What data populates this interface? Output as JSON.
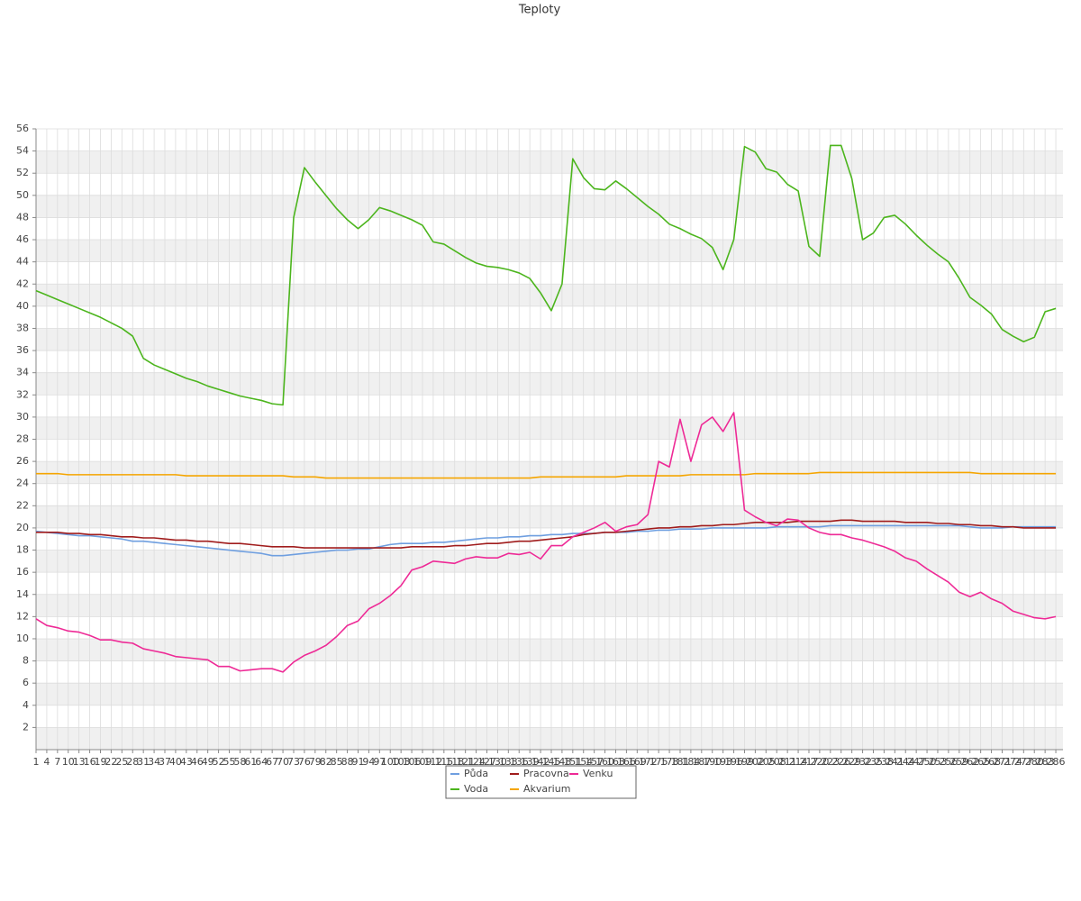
{
  "chart_data": {
    "type": "line",
    "title": "Teploty",
    "x": [
      1,
      4,
      7,
      10,
      13,
      16,
      19,
      22,
      25,
      28,
      31,
      34,
      37,
      40,
      43,
      46,
      49,
      52,
      55,
      58,
      61,
      64,
      67,
      70,
      73,
      76,
      79,
      82,
      85,
      88,
      91,
      94,
      97,
      100,
      103,
      106,
      109,
      112,
      115,
      118,
      121,
      124,
      127,
      130,
      133,
      136,
      139,
      142,
      145,
      148,
      151,
      154,
      157,
      160,
      163,
      166,
      169,
      172,
      175,
      178,
      181,
      184,
      187,
      190,
      193,
      196,
      199,
      202,
      205,
      208,
      211,
      214,
      217,
      220,
      223,
      226,
      229,
      232,
      235,
      238,
      241,
      244,
      247,
      250,
      253,
      256,
      259,
      262,
      265,
      268,
      271,
      274,
      277,
      280,
      283,
      286
    ],
    "xlim": [
      1,
      288
    ],
    "ylim": [
      0,
      56
    ],
    "yticks": [
      2,
      4,
      6,
      8,
      10,
      12,
      14,
      16,
      18,
      20,
      22,
      24,
      26,
      28,
      30,
      32,
      34,
      36,
      38,
      40,
      42,
      44,
      46,
      48,
      50,
      52,
      54,
      56
    ],
    "grid": true,
    "legend": "bottom",
    "series": [
      {
        "name": "Půda",
        "color": "#6f9fe0",
        "values": [
          19.7,
          19.6,
          19.5,
          19.4,
          19.3,
          19.3,
          19.2,
          19.1,
          19.0,
          18.8,
          18.8,
          18.7,
          18.6,
          18.5,
          18.4,
          18.3,
          18.2,
          18.1,
          18.0,
          17.9,
          17.8,
          17.7,
          17.5,
          17.5,
          17.6,
          17.7,
          17.8,
          17.9,
          18.0,
          18.0,
          18.1,
          18.1,
          18.3,
          18.5,
          18.6,
          18.6,
          18.6,
          18.7,
          18.7,
          18.8,
          18.9,
          19.0,
          19.1,
          19.1,
          19.2,
          19.2,
          19.3,
          19.3,
          19.4,
          19.4,
          19.5,
          19.5,
          19.5,
          19.6,
          19.6,
          19.6,
          19.7,
          19.7,
          19.8,
          19.8,
          19.9,
          19.9,
          19.9,
          20.0,
          20.0,
          20.0,
          20.0,
          20.0,
          20.0,
          20.1,
          20.1,
          20.1,
          20.1,
          20.1,
          20.2,
          20.2,
          20.2,
          20.2,
          20.2,
          20.2,
          20.2,
          20.2,
          20.2,
          20.2,
          20.2,
          20.2,
          20.2,
          20.1,
          20.0,
          20.0,
          20.0,
          20.1,
          20.1,
          20.1,
          20.1,
          20.1
        ]
      },
      {
        "name": "Voda",
        "color": "#4cb51d",
        "values": [
          41.4,
          41.0,
          40.6,
          40.2,
          39.8,
          39.4,
          39.0,
          38.5,
          38.0,
          37.3,
          35.3,
          34.7,
          34.3,
          33.9,
          33.5,
          33.2,
          32.8,
          32.5,
          32.2,
          31.9,
          31.7,
          31.5,
          31.2,
          31.1,
          48.0,
          52.5,
          51.2,
          50.0,
          48.8,
          47.8,
          47.0,
          47.8,
          48.9,
          48.6,
          48.2,
          47.8,
          47.3,
          45.8,
          45.6,
          45.0,
          44.4,
          43.9,
          43.6,
          43.5,
          43.3,
          43.0,
          42.5,
          41.2,
          39.6,
          42.0,
          53.3,
          51.6,
          50.6,
          50.5,
          51.3,
          50.6,
          49.8,
          49.0,
          48.3,
          47.4,
          47.0,
          46.5,
          46.1,
          45.3,
          43.3,
          46.0,
          54.4,
          53.9,
          52.4,
          52.1,
          51.0,
          50.4,
          45.4,
          44.5,
          54.5,
          54.5,
          51.5,
          46.0,
          46.6,
          48.0,
          48.2,
          47.4,
          46.4,
          45.5,
          44.7,
          44.0,
          42.5,
          40.8,
          40.1,
          39.3,
          37.9,
          37.3,
          36.8,
          37.2,
          39.5,
          39.8
        ]
      },
      {
        "name": "Pracovna",
        "color": "#a01c1c",
        "values": [
          19.6,
          19.6,
          19.6,
          19.5,
          19.5,
          19.4,
          19.4,
          19.3,
          19.2,
          19.2,
          19.1,
          19.1,
          19.0,
          18.9,
          18.9,
          18.8,
          18.8,
          18.7,
          18.6,
          18.6,
          18.5,
          18.4,
          18.3,
          18.3,
          18.3,
          18.2,
          18.2,
          18.2,
          18.2,
          18.2,
          18.2,
          18.2,
          18.2,
          18.2,
          18.2,
          18.3,
          18.3,
          18.3,
          18.3,
          18.4,
          18.4,
          18.5,
          18.6,
          18.6,
          18.7,
          18.8,
          18.8,
          18.9,
          19.0,
          19.1,
          19.2,
          19.4,
          19.5,
          19.6,
          19.6,
          19.7,
          19.8,
          19.9,
          20.0,
          20.0,
          20.1,
          20.1,
          20.2,
          20.2,
          20.3,
          20.3,
          20.4,
          20.5,
          20.5,
          20.5,
          20.5,
          20.6,
          20.6,
          20.6,
          20.6,
          20.7,
          20.7,
          20.6,
          20.6,
          20.6,
          20.6,
          20.5,
          20.5,
          20.5,
          20.4,
          20.4,
          20.3,
          20.3,
          20.2,
          20.2,
          20.1,
          20.1,
          20.0,
          20.0,
          20.0,
          20.0
        ]
      },
      {
        "name": "Akvarium",
        "color": "#f5a500",
        "values": [
          24.9,
          24.9,
          24.9,
          24.8,
          24.8,
          24.8,
          24.8,
          24.8,
          24.8,
          24.8,
          24.8,
          24.8,
          24.8,
          24.8,
          24.7,
          24.7,
          24.7,
          24.7,
          24.7,
          24.7,
          24.7,
          24.7,
          24.7,
          24.7,
          24.6,
          24.6,
          24.6,
          24.5,
          24.5,
          24.5,
          24.5,
          24.5,
          24.5,
          24.5,
          24.5,
          24.5,
          24.5,
          24.5,
          24.5,
          24.5,
          24.5,
          24.5,
          24.5,
          24.5,
          24.5,
          24.5,
          24.5,
          24.6,
          24.6,
          24.6,
          24.6,
          24.6,
          24.6,
          24.6,
          24.6,
          24.7,
          24.7,
          24.7,
          24.7,
          24.7,
          24.7,
          24.8,
          24.8,
          24.8,
          24.8,
          24.8,
          24.8,
          24.9,
          24.9,
          24.9,
          24.9,
          24.9,
          24.9,
          25.0,
          25.0,
          25.0,
          25.0,
          25.0,
          25.0,
          25.0,
          25.0,
          25.0,
          25.0,
          25.0,
          25.0,
          25.0,
          25.0,
          25.0,
          24.9,
          24.9,
          24.9,
          24.9,
          24.9,
          24.9,
          24.9,
          24.9
        ]
      },
      {
        "name": "Venku",
        "color": "#ee2a96",
        "values": [
          11.8,
          11.2,
          11.0,
          10.7,
          10.6,
          10.3,
          9.9,
          9.9,
          9.7,
          9.6,
          9.1,
          8.9,
          8.7,
          8.4,
          8.3,
          8.2,
          8.1,
          7.5,
          7.5,
          7.1,
          7.2,
          7.3,
          7.3,
          7.0,
          7.9,
          8.5,
          8.9,
          9.4,
          10.2,
          11.2,
          11.6,
          12.7,
          13.2,
          13.9,
          14.8,
          16.2,
          16.5,
          17.0,
          16.9,
          16.8,
          17.2,
          17.4,
          17.3,
          17.3,
          17.7,
          17.6,
          17.8,
          17.2,
          18.4,
          18.4,
          19.2,
          19.6,
          20.0,
          20.5,
          19.7,
          20.1,
          20.3,
          21.2,
          26.0,
          25.5,
          29.8,
          26.0,
          29.3,
          30.0,
          28.7,
          30.4,
          21.6,
          21.0,
          20.5,
          20.2,
          20.8,
          20.7,
          20.0,
          19.6,
          19.4,
          19.4,
          19.1,
          18.9,
          18.6,
          18.3,
          17.9,
          17.3,
          17.0,
          16.3,
          15.7,
          15.1,
          14.2,
          13.8,
          14.2,
          13.6,
          13.2,
          12.5,
          12.2,
          11.9,
          11.8,
          12.0
        ]
      }
    ]
  }
}
